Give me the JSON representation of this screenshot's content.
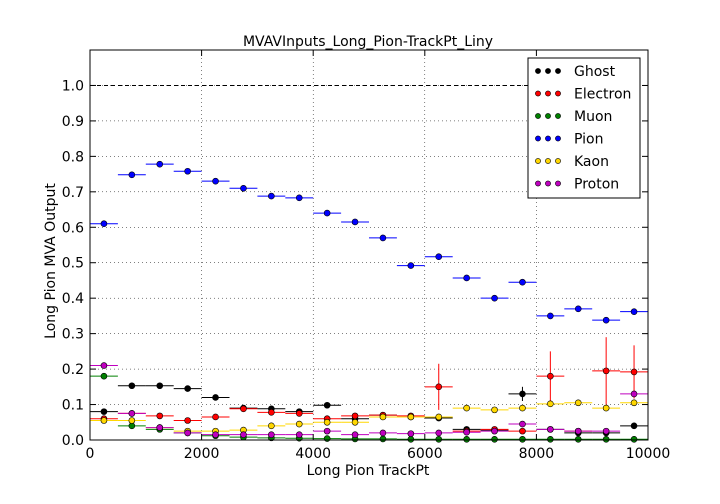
{
  "chart_data": {
    "type": "scatter",
    "title": "MVAVInputs_Long_Pion-TrackPt_Liny",
    "xlabel": "Long Pion TrackPt",
    "ylabel": "Long Pion MVA Output",
    "xlim": [
      0,
      10000
    ],
    "ylim": [
      0,
      1.1
    ],
    "grid": true,
    "legend_position": "top-right",
    "reference_line": 1.0,
    "x_ticks": [
      0,
      2000,
      4000,
      6000,
      8000,
      10000
    ],
    "x_tick_labels": [
      "0",
      "2000",
      "4000",
      "6000",
      "8000",
      "10000"
    ],
    "y_ticks": [
      0.0,
      0.1,
      0.2,
      0.3,
      0.4,
      0.5,
      0.6,
      0.7,
      0.8,
      0.9,
      1.0
    ],
    "y_tick_labels": [
      "0.0",
      "0.1",
      "0.2",
      "0.3",
      "0.4",
      "0.5",
      "0.6",
      "0.7",
      "0.8",
      "0.9",
      "1.0"
    ],
    "x": [
      250,
      750,
      1250,
      1750,
      2250,
      2750,
      3250,
      3750,
      4250,
      4750,
      5250,
      5750,
      6250,
      6750,
      7250,
      7750,
      8250,
      8750,
      9250,
      9750
    ],
    "bin_half_width": 250,
    "series": [
      {
        "name": "Ghost",
        "color": "#000000",
        "values": [
          0.08,
          0.153,
          0.153,
          0.145,
          0.12,
          0.09,
          0.088,
          0.08,
          0.098,
          0.06,
          0.07,
          0.065,
          0.062,
          0.03,
          0.028,
          0.13,
          0.03,
          0.02,
          0.02,
          0.04
        ],
        "errors": [
          0.003,
          0.003,
          0.003,
          0.003,
          0.003,
          0.003,
          0.004,
          0.004,
          0.004,
          0.004,
          0.005,
          0.005,
          0.005,
          0.006,
          0.006,
          0.02,
          0.006,
          0.006,
          0.006,
          0.006
        ]
      },
      {
        "name": "Electron",
        "color": "#ff0000",
        "values": [
          0.06,
          0.075,
          0.068,
          0.055,
          0.065,
          0.088,
          0.078,
          0.075,
          0.06,
          0.068,
          0.07,
          0.068,
          0.15,
          0.025,
          0.03,
          0.025,
          0.18,
          0.025,
          0.195,
          0.192
        ],
        "errors": [
          0.003,
          0.003,
          0.003,
          0.003,
          0.003,
          0.004,
          0.004,
          0.004,
          0.005,
          0.005,
          0.006,
          0.008,
          0.065,
          0.008,
          0.008,
          0.008,
          0.07,
          0.008,
          0.095,
          0.075
        ]
      },
      {
        "name": "Muon",
        "color": "#008000",
        "values": [
          0.18,
          0.04,
          0.03,
          0.02,
          0.012,
          0.008,
          0.006,
          0.005,
          0.004,
          0.003,
          0.003,
          0.002,
          0.002,
          0.002,
          0.002,
          0.002,
          0.002,
          0.002,
          0.002,
          0.002
        ],
        "errors": [
          0.004,
          0.002,
          0.002,
          0.002,
          0.001,
          0.001,
          0.001,
          0.001,
          0.001,
          0.001,
          0.001,
          0.001,
          0.001,
          0.001,
          0.001,
          0.001,
          0.001,
          0.001,
          0.001,
          0.001
        ]
      },
      {
        "name": "Pion",
        "color": "#0000ff",
        "values": [
          0.61,
          0.748,
          0.778,
          0.758,
          0.73,
          0.71,
          0.688,
          0.683,
          0.64,
          0.615,
          0.57,
          0.492,
          0.517,
          0.457,
          0.4,
          0.445,
          0.35,
          0.37,
          0.338,
          0.362
        ],
        "errors": [
          0.004,
          0.003,
          0.002,
          0.002,
          0.002,
          0.002,
          0.002,
          0.002,
          0.003,
          0.003,
          0.003,
          0.004,
          0.004,
          0.004,
          0.005,
          0.005,
          0.005,
          0.006,
          0.006,
          0.008
        ]
      },
      {
        "name": "Kaon",
        "color": "#ffd700",
        "values": [
          0.055,
          0.055,
          0.035,
          0.025,
          0.025,
          0.028,
          0.04,
          0.045,
          0.05,
          0.05,
          0.065,
          0.065,
          0.065,
          0.09,
          0.085,
          0.09,
          0.102,
          0.105,
          0.09,
          0.105
        ],
        "errors": [
          0.002,
          0.002,
          0.002,
          0.002,
          0.002,
          0.002,
          0.002,
          0.002,
          0.003,
          0.003,
          0.003,
          0.003,
          0.003,
          0.004,
          0.004,
          0.004,
          0.004,
          0.004,
          0.005,
          0.005
        ]
      },
      {
        "name": "Proton",
        "color": "#bf00bf",
        "values": [
          0.21,
          0.075,
          0.035,
          0.02,
          0.015,
          0.015,
          0.015,
          0.015,
          0.025,
          0.015,
          0.02,
          0.018,
          0.02,
          0.022,
          0.025,
          0.045,
          0.03,
          0.025,
          0.025,
          0.13
        ],
        "errors": [
          0.003,
          0.003,
          0.002,
          0.002,
          0.002,
          0.002,
          0.002,
          0.002,
          0.002,
          0.002,
          0.002,
          0.002,
          0.003,
          0.003,
          0.003,
          0.004,
          0.004,
          0.004,
          0.005,
          0.008
        ]
      }
    ]
  }
}
